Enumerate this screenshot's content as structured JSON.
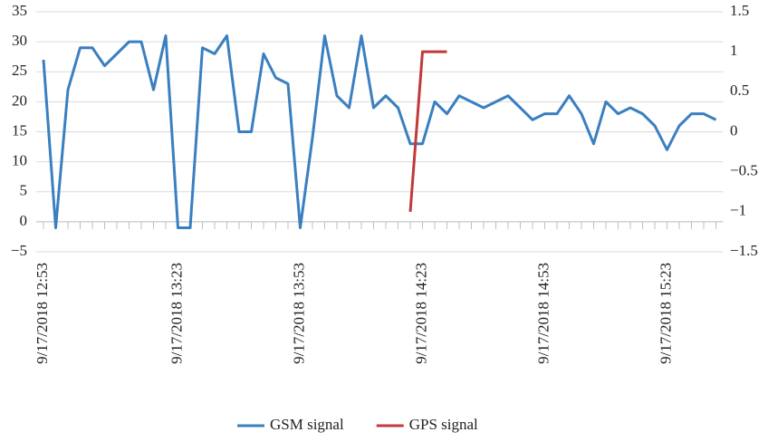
{
  "chart_data": {
    "type": "line",
    "categories": [
      "9/17/2018 12:53",
      null,
      null,
      null,
      null,
      null,
      null,
      null,
      null,
      null,
      null,
      "9/17/2018 13:23",
      null,
      null,
      null,
      null,
      null,
      null,
      null,
      null,
      null,
      "9/17/2018 13:53",
      null,
      null,
      null,
      null,
      null,
      null,
      null,
      null,
      null,
      "9/17/2018 14:23",
      null,
      null,
      null,
      null,
      null,
      null,
      null,
      null,
      null,
      "9/17/2018 14:53",
      null,
      null,
      null,
      null,
      null,
      null,
      null,
      null,
      null,
      "9/17/2018 15:23",
      null,
      null,
      null,
      null
    ],
    "series": [
      {
        "name": "GSM signal",
        "color": "#3a7fc0",
        "values": [
          27,
          -1,
          22,
          29,
          29,
          26,
          28,
          30,
          30,
          22,
          31,
          -1,
          -1,
          29,
          28,
          31,
          15,
          15,
          28,
          24,
          23,
          -1,
          14,
          31,
          21,
          19,
          31,
          19,
          21,
          19,
          13,
          13,
          20,
          18,
          21,
          20,
          19,
          20,
          21,
          19,
          17,
          18,
          18,
          21,
          18,
          13,
          20,
          18,
          19,
          18,
          16,
          12,
          16,
          18,
          18,
          17
        ]
      },
      {
        "name": "GPS signal",
        "color": "#c0393b",
        "axis": "y2",
        "values": [
          null,
          null,
          null,
          null,
          null,
          null,
          null,
          null,
          null,
          null,
          null,
          null,
          null,
          null,
          null,
          null,
          null,
          null,
          null,
          null,
          null,
          null,
          null,
          null,
          null,
          null,
          null,
          null,
          null,
          null,
          -1,
          1,
          1,
          1,
          null,
          null,
          null,
          null,
          null,
          null,
          null,
          null,
          null,
          null,
          null,
          null,
          null,
          null,
          null,
          null,
          null,
          null,
          null,
          null,
          null,
          null
        ]
      }
    ],
    "ylim": [
      -5,
      35
    ],
    "yticks": [
      {
        "value": -5,
        "label": "−5"
      },
      0,
      5,
      10,
      15,
      20,
      25,
      30,
      35
    ],
    "y2lim": [
      -1.5,
      1.5
    ],
    "y2ticks": [
      {
        "value": -1.5,
        "label": "−1.5"
      },
      {
        "value": -1,
        "label": "−1"
      },
      {
        "value": -0.5,
        "label": "−0.5"
      },
      0,
      0.5,
      1,
      1.5
    ],
    "grid": true
  }
}
